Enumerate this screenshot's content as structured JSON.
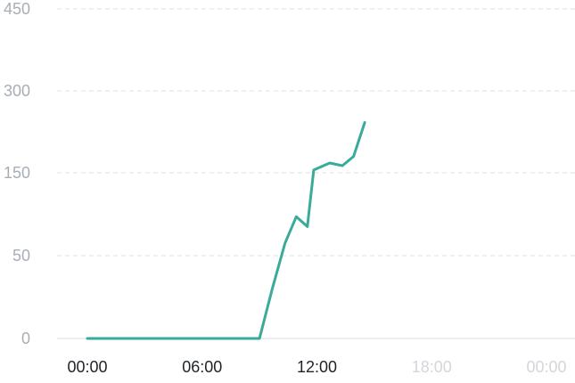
{
  "chart_data": {
    "type": "line",
    "title": "",
    "xlabel": "",
    "ylabel": "",
    "grid": true,
    "y_ticks": [
      {
        "value": 0,
        "label": "0"
      },
      {
        "value": 50,
        "label": "50"
      },
      {
        "value": 150,
        "label": "150"
      },
      {
        "value": 300,
        "label": "300"
      },
      {
        "value": 450,
        "label": "450"
      }
    ],
    "x_ticks": [
      {
        "label": "00:00",
        "hour": 0,
        "active": true
      },
      {
        "label": "06:00",
        "hour": 6,
        "active": true
      },
      {
        "label": "12:00",
        "hour": 12,
        "active": true
      },
      {
        "label": "18:00",
        "hour": 18,
        "active": false
      },
      {
        "label": "00:00",
        "hour": 24,
        "active": false
      }
    ],
    "xlim_hours": [
      0,
      24
    ],
    "series": [
      {
        "color": "#3aab98",
        "points": [
          {
            "time": "00:00",
            "value": 0
          },
          {
            "time": "01:00",
            "value": 0
          },
          {
            "time": "02:00",
            "value": 0
          },
          {
            "time": "03:00",
            "value": 0
          },
          {
            "time": "04:00",
            "value": 0
          },
          {
            "time": "05:00",
            "value": 0
          },
          {
            "time": "06:00",
            "value": 0
          },
          {
            "time": "07:00",
            "value": 0
          },
          {
            "time": "08:00",
            "value": 0
          },
          {
            "time": "09:00",
            "value": 0
          },
          {
            "time": "09:40",
            "value": 30
          },
          {
            "time": "10:20",
            "value": 65
          },
          {
            "time": "10:55",
            "value": 97
          },
          {
            "time": "11:30",
            "value": 85
          },
          {
            "time": "11:50",
            "value": 155
          },
          {
            "time": "12:40",
            "value": 168
          },
          {
            "time": "13:20",
            "value": 163
          },
          {
            "time": "13:55",
            "value": 180
          },
          {
            "time": "14:30",
            "value": 242
          }
        ]
      }
    ],
    "colors": {
      "line": "#3aab98",
      "grid": "#dcdfe3",
      "ytick_text": "#a8aeb6",
      "xtick_active": "#1f2328",
      "xtick_inactive": "#d3d6da"
    }
  }
}
